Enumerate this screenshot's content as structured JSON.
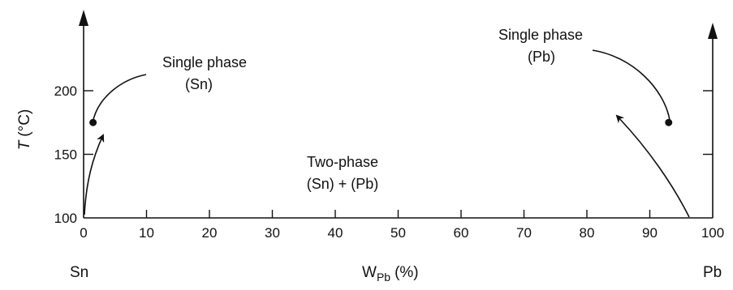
{
  "chart_data": {
    "type": "line",
    "xlabel_main": "W",
    "xlabel_sub": "Pb",
    "xlabel_unit": "(%)",
    "ylabel_main": "T",
    "ylabel_unit": "(°C)",
    "xlim": [
      0,
      100
    ],
    "ylim": [
      100,
      250
    ],
    "x_ticks": [
      0,
      10,
      20,
      30,
      40,
      50,
      60,
      70,
      80,
      90,
      100
    ],
    "x_tick_labels": [
      "0",
      "10",
      "20",
      "30",
      "40",
      "50",
      "60",
      "70",
      "80",
      "90",
      "100"
    ],
    "y_ticks": [
      100,
      150,
      200
    ],
    "y_tick_labels": [
      "100",
      "150",
      "200"
    ],
    "left_component": "Sn",
    "right_component": "Pb",
    "annotations": {
      "sn_single_line1": "Single phase",
      "sn_single_line2": "(Sn)",
      "pb_single_line1": "Single phase",
      "pb_single_line2": "(Pb)",
      "two_phase_line1": "Two-phase",
      "two_phase_line2": "(Sn) + (Pb)"
    },
    "points": [
      {
        "name": "sn-region-point",
        "x": 1.5,
        "y": 175
      },
      {
        "name": "pb-region-point",
        "x": 93,
        "y": 175
      }
    ]
  }
}
